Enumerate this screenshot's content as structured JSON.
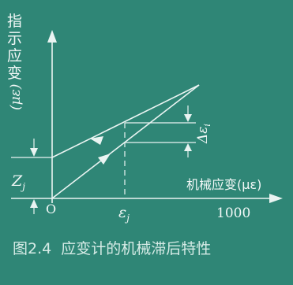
{
  "diagram": {
    "y_axis_label_cn": "指示应变",
    "y_axis_label_unit": "(με)",
    "x_axis_label": "机械应变(με)",
    "origin": "O",
    "zj_label": "Z",
    "zj_sub": "j",
    "ej_label": "ε",
    "ej_sub": "j",
    "tick_value": "1000",
    "delta_label": "Δε",
    "delta_sub": "i",
    "caption": "图2.4  应变计的机械滞后特性"
  },
  "colors": {
    "background": "#2f8676",
    "ink": "#eaf4f2"
  }
}
